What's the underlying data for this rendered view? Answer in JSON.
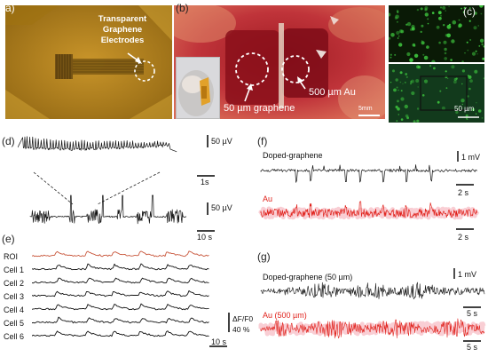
{
  "panel_labels": {
    "a": "(a)",
    "b": "(b)",
    "c": "(c)",
    "d": "(d)",
    "e": "(e)",
    "f": "(f)",
    "g": "(g)"
  },
  "panel_a": {
    "annotation": "Transparent Graphene Electrodes"
  },
  "panel_b": {
    "label_left": "50 µm graphene",
    "label_right": "500 µm Au",
    "scalebar": "5mm"
  },
  "panel_c": {
    "scalebar": "50 µm"
  },
  "panel_d": {
    "scale_top_v": "50 µV",
    "scale_top_t": "1s",
    "scale_bottom_v": "50 µV",
    "scale_bottom_t": "10 s"
  },
  "panel_e": {
    "rows": [
      "ROI",
      "Cell 1",
      "Cell 2",
      "Cell 3",
      "Cell 4",
      "Cell 5",
      "Cell 6"
    ],
    "scale_v": "ΔF/F0",
    "scale_v_value": "40 %",
    "scale_t": "10 s"
  },
  "panel_f": {
    "trace_top_label": "Doped-graphene",
    "trace_bottom_label": "Au",
    "scale_v": "1 mV",
    "scale_t_top": "2 s",
    "scale_t_bottom": "2 s"
  },
  "panel_g": {
    "trace_top_label": "Doped-graphene (50 µm)",
    "trace_bottom_label": "Au (500 µm)",
    "scale_v": "1 mV",
    "scale_t_top": "5 s",
    "scale_t_bottom": "5 s"
  },
  "colors": {
    "gold": "#b8860b",
    "trace_black": "#111111",
    "trace_red": "#e0201a",
    "red_glow": "#f4a6b0",
    "roi_orange": "#c8553a",
    "fluor_green": "#3fc93f"
  }
}
